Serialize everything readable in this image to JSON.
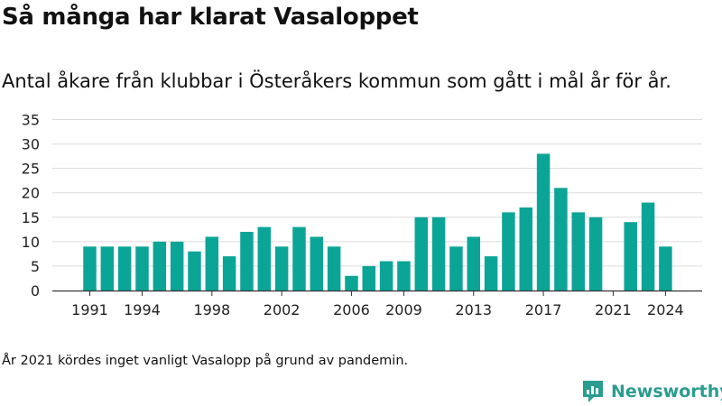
{
  "title": "Så många har klarat Vasaloppet",
  "subtitle": "Antal åkare från klubbar i Österåkers kommun som gått i mål år för år.",
  "note": "År 2021 kördes inget vanligt Vasalopp på grund av pandemin.",
  "brand": {
    "name": "Newsworthy",
    "color": "#2a9d8f"
  },
  "chart_data": {
    "type": "bar",
    "bar_color": "#0ba597",
    "x": [
      1991,
      1992,
      1993,
      1994,
      1995,
      1996,
      1997,
      1998,
      1999,
      2000,
      2001,
      2002,
      2003,
      2004,
      2005,
      2006,
      2007,
      2008,
      2009,
      2010,
      2011,
      2012,
      2013,
      2014,
      2015,
      2016,
      2017,
      2018,
      2019,
      2020,
      2021,
      2022,
      2023,
      2024
    ],
    "values": [
      9,
      9,
      9,
      9,
      10,
      10,
      8,
      11,
      7,
      12,
      13,
      9,
      13,
      11,
      9,
      3,
      5,
      6,
      6,
      15,
      15,
      9,
      11,
      7,
      16,
      17,
      28,
      21,
      16,
      15,
      null,
      14,
      18,
      9
    ],
    "x_ticks": [
      "1991",
      "1994",
      "1998",
      "2002",
      "2006",
      "2009",
      "2013",
      "2017",
      "2021",
      "2024"
    ],
    "y_ticks": [
      "0",
      "5",
      "10",
      "15",
      "20",
      "25",
      "30",
      "35"
    ],
    "ylim": [
      0,
      35
    ],
    "grid": true
  }
}
